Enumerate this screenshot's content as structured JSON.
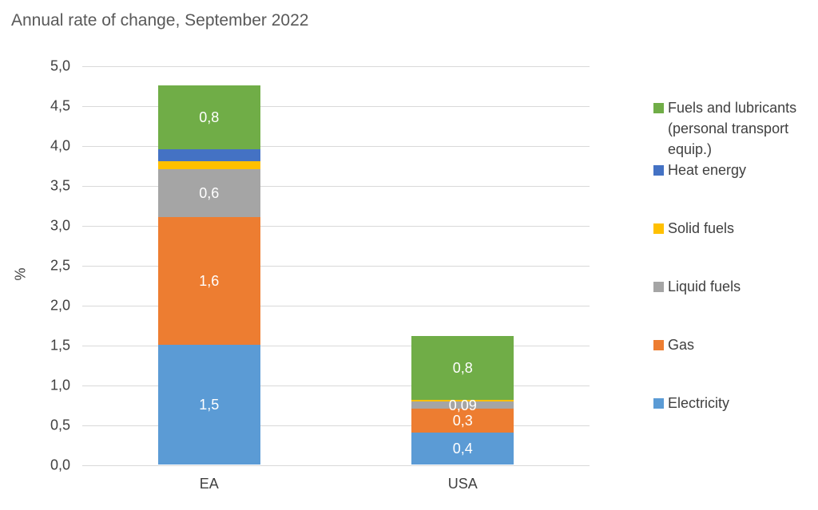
{
  "title": "Annual rate of change, September 2022",
  "chart_data": {
    "type": "bar",
    "stacked": true,
    "title": "Annual rate of change, September 2022",
    "categories": [
      "EA",
      "USA"
    ],
    "series": [
      {
        "name": "Electricity",
        "color": "#5B9BD5",
        "values": [
          1.5,
          0.4
        ],
        "value_labels": [
          "1,5",
          "0,4"
        ]
      },
      {
        "name": "Gas",
        "color": "#ED7D31",
        "values": [
          1.6,
          0.3
        ],
        "value_labels": [
          "1,6",
          "0,3"
        ]
      },
      {
        "name": "Liquid fuels",
        "color": "#A5A5A5",
        "values": [
          0.6,
          0.09
        ],
        "value_labels": [
          "0,6",
          "0,09"
        ]
      },
      {
        "name": "Solid fuels",
        "color": "#FFC000",
        "values": [
          0.1,
          0.02
        ],
        "value_labels": [
          "",
          ""
        ]
      },
      {
        "name": "Heat energy",
        "color": "#4472C4",
        "values": [
          0.15,
          0
        ],
        "value_labels": [
          "",
          ""
        ]
      },
      {
        "name": "Fuels and lubricants (personal transport equip.)",
        "color": "#70AD47",
        "values": [
          0.8,
          0.8
        ],
        "value_labels": [
          "0,8",
          "0,8"
        ]
      }
    ],
    "ylabel": "%",
    "ylim": [
      0,
      5
    ],
    "ytick_step": 0.5,
    "yticks": [
      {
        "value": 0.0,
        "label": "0,0"
      },
      {
        "value": 0.5,
        "label": "0,5"
      },
      {
        "value": 1.0,
        "label": "1,0"
      },
      {
        "value": 1.5,
        "label": "1,5"
      },
      {
        "value": 2.0,
        "label": "2,0"
      },
      {
        "value": 2.5,
        "label": "2,5"
      },
      {
        "value": 3.0,
        "label": "3,0"
      },
      {
        "value": 3.5,
        "label": "3,5"
      },
      {
        "value": 4.0,
        "label": "4,0"
      },
      {
        "value": 4.5,
        "label": "4,5"
      },
      {
        "value": 5.0,
        "label": "5,0"
      }
    ],
    "grid": true,
    "legend_position": "right",
    "legend_order": [
      "Fuels and lubricants (personal transport equip.)",
      "Heat energy",
      "Solid fuels",
      "Liquid fuels",
      "Gas",
      "Electricity"
    ]
  },
  "colors": {
    "title_text": "#595959",
    "axis_text": "#404040",
    "gridline": "#D9D9D9",
    "bar_value_text": "#FFFFFF",
    "background": "#FFFFFF"
  }
}
